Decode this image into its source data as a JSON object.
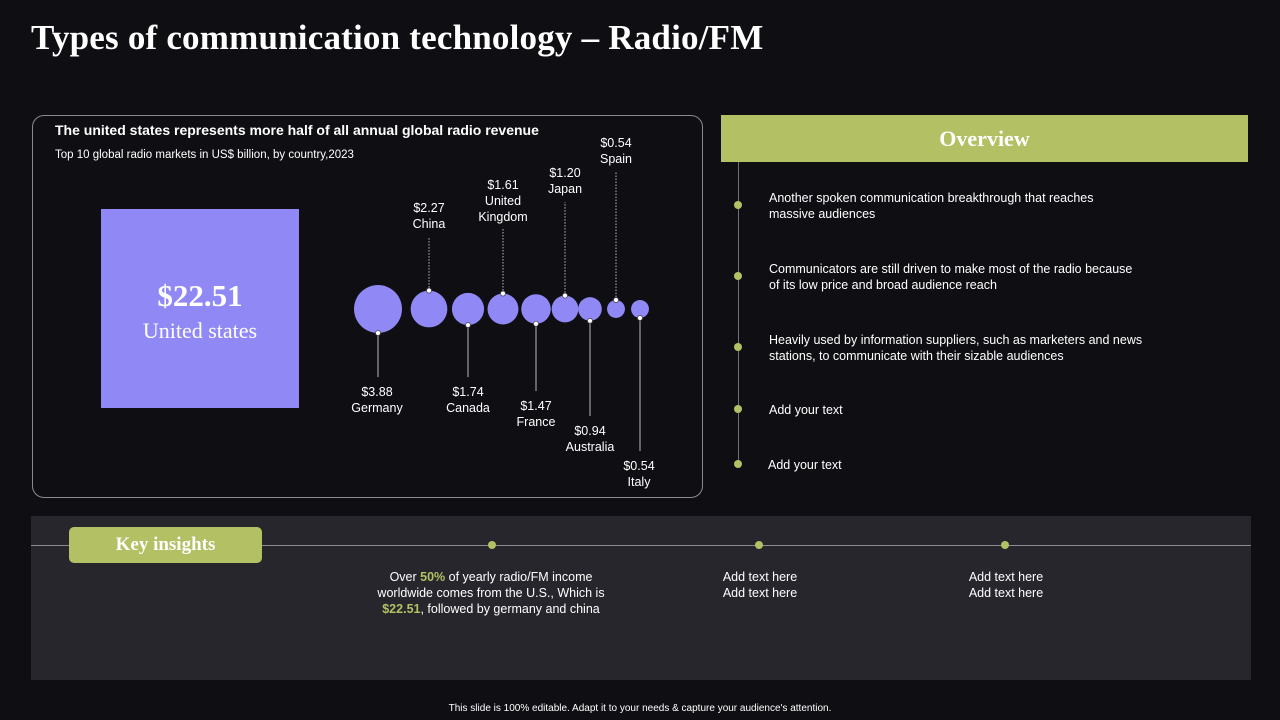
{
  "slide": {
    "title": "Types of communication  technology – Radio/FM",
    "footer": "This slide is 100% editable. Adapt it to your needs & capture your audience's attention."
  },
  "chart_data": {
    "type": "bubble",
    "title": "The united states represents more half of all annual global radio revenue",
    "subtitle": "Top 10 global radio markets in US$ billion, by country,2023",
    "unit": "US$ billion",
    "highlight": {
      "label": "United states",
      "value": 22.51,
      "value_label": "$22.51"
    },
    "points": [
      {
        "label": [
          "Germany"
        ],
        "value": 3.88,
        "value_label": "$3.88",
        "position": "below"
      },
      {
        "label": [
          "China"
        ],
        "value": 2.27,
        "value_label": "$2.27",
        "position": "above"
      },
      {
        "label": [
          "Canada"
        ],
        "value": 1.74,
        "value_label": "$1.74",
        "position": "below"
      },
      {
        "label": [
          "United",
          "Kingdom"
        ],
        "value": 1.61,
        "value_label": "$1.61",
        "position": "above"
      },
      {
        "label": [
          "France"
        ],
        "value": 1.47,
        "value_label": "$1.47",
        "position": "below"
      },
      {
        "label": [
          "Japan"
        ],
        "value": 1.2,
        "value_label": "$1.20",
        "position": "above"
      },
      {
        "label": [
          "Australia"
        ],
        "value": 0.94,
        "value_label": "$0.94",
        "position": "below"
      },
      {
        "label": [
          "Spain"
        ],
        "value": 0.54,
        "value_label": "$0.54",
        "position": "above"
      },
      {
        "label": [
          "Italy"
        ],
        "value": 0.54,
        "value_label": "$0.54",
        "position": "below"
      }
    ],
    "colors": {
      "bubble": "#9089f5",
      "leader": "#b8b8c0"
    }
  },
  "overview": {
    "title": "Overview",
    "items": [
      {
        "lines": [
          "Another spoken communication breakthrough  that reaches",
          "massive audiences"
        ]
      },
      {
        "lines": [
          "Communicators  are still driven to make most of the radio  because",
          "of its low price and broad audience reach"
        ]
      },
      {
        "lines": [
          "Heavily  used by information  suppliers, such as marketers and news",
          "stations, to communicate with their sizable audiences"
        ]
      },
      {
        "lines": [
          "Add your text"
        ]
      },
      {
        "lines": [
          "Add your text"
        ]
      }
    ]
  },
  "insights": {
    "title": "Key insights",
    "first": {
      "p1": "Over ",
      "h1": "50%",
      "p2": " of yearly radio/FM  income worldwide  comes from the U.S., Which is ",
      "h2": "$22.51",
      "p3": ", followed  by germany and china"
    },
    "items": [
      {
        "lines": [
          "Add text here",
          "Add text here"
        ]
      },
      {
        "lines": [
          "Add text here",
          "Add text here"
        ]
      }
    ]
  },
  "colors": {
    "accent": "#b3c063",
    "background": "#0f0e13",
    "panel": "#27262c",
    "bubble": "#9089f5"
  }
}
